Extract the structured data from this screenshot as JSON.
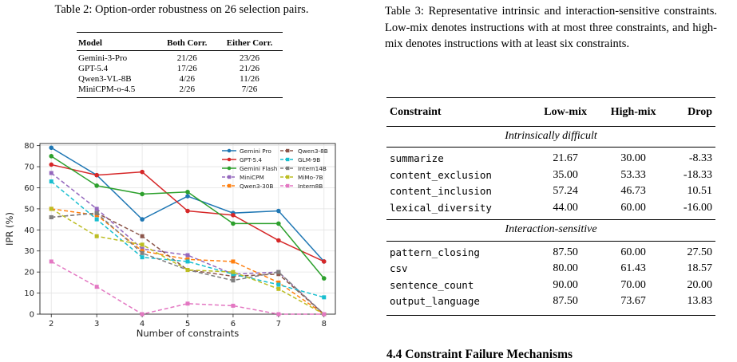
{
  "table2": {
    "caption": "Table 2: Option-order robustness on 26 selection pairs.",
    "headers": [
      "Model",
      "Both Corr.",
      "Either Corr."
    ],
    "rows": [
      [
        "Gemini-3-Pro",
        "21/26",
        "23/26"
      ],
      [
        "GPT-5.4",
        "17/26",
        "21/26"
      ],
      [
        "Qwen3-VL-8B",
        "4/26",
        "11/26"
      ],
      [
        "MiniCPM-o-4.5",
        "2/26",
        "7/26"
      ]
    ]
  },
  "table3": {
    "caption": "Table 3: Representative intrinsic and interaction-sensitive constraints. Low-mix denotes instructions with at most three constraints, and high-mix denotes instructions with at least six constraints.",
    "headers": [
      "Constraint",
      "Low-mix",
      "High-mix",
      "Drop"
    ],
    "sections": [
      {
        "title": "Intrinsically difficult",
        "rows": [
          [
            "summarize",
            "21.67",
            "30.00",
            "-8.33"
          ],
          [
            "content_exclusion",
            "35.00",
            "53.33",
            "-18.33"
          ],
          [
            "content_inclusion",
            "57.24",
            "46.73",
            "10.51"
          ],
          [
            "lexical_diversity",
            "44.00",
            "60.00",
            "-16.00"
          ]
        ]
      },
      {
        "title": "Interaction-sensitive",
        "rows": [
          [
            "pattern_closing",
            "87.50",
            "60.00",
            "27.50"
          ],
          [
            "csv",
            "80.00",
            "61.43",
            "18.57"
          ],
          [
            "sentence_count",
            "90.00",
            "70.00",
            "20.00"
          ],
          [
            "output_language",
            "87.50",
            "73.67",
            "13.83"
          ]
        ]
      }
    ]
  },
  "section_heading": "4.4   Constraint Failure Mechanisms",
  "chart_data": {
    "type": "line",
    "xlabel": "Number of constraints",
    "ylabel": "IPR (%)",
    "x": [
      2,
      3,
      4,
      5,
      6,
      7,
      8
    ],
    "xlim": [
      1.75,
      8.25
    ],
    "ylim": [
      0,
      81
    ],
    "yticks": [
      0,
      10,
      20,
      30,
      40,
      50,
      60,
      70,
      80
    ],
    "grid": true,
    "legend": "top-right",
    "series": [
      {
        "name": "Gemini Pro",
        "color": "#1f77b4",
        "dash": "solid",
        "values": [
          79,
          66,
          45,
          56,
          48,
          49,
          25
        ]
      },
      {
        "name": "GPT-5.4",
        "color": "#d62728",
        "dash": "solid",
        "values": [
          71,
          66,
          67.5,
          49,
          47,
          35,
          25
        ]
      },
      {
        "name": "Gemini Flash",
        "color": "#2ca02c",
        "dash": "solid",
        "values": [
          75,
          61,
          57,
          58,
          43,
          43,
          17
        ]
      },
      {
        "name": "MiniCPM",
        "color": "#9467bd",
        "dash": "dashed",
        "values": [
          67,
          50,
          31,
          28,
          19,
          20,
          0
        ]
      },
      {
        "name": "Qwen3-30B",
        "color": "#ff7f0e",
        "dash": "dashed",
        "values": [
          50,
          47,
          30,
          26,
          25,
          15,
          0
        ]
      },
      {
        "name": "Qwen3-8B",
        "color": "#8c564b",
        "dash": "dashed",
        "values": [
          46,
          48,
          37,
          21,
          18,
          19,
          0
        ]
      },
      {
        "name": "GLM-9B",
        "color": "#17becf",
        "dash": "dashed",
        "values": [
          63,
          45,
          27,
          25,
          19,
          14,
          8
        ]
      },
      {
        "name": "Intern14B",
        "color": "#7f7f7f",
        "dash": "dashed",
        "values": [
          46,
          48,
          29,
          21,
          16,
          20,
          0
        ]
      },
      {
        "name": "MiMo-7B",
        "color": "#bcbd22",
        "dash": "dashed",
        "values": [
          50,
          37,
          33,
          21,
          20,
          12,
          0
        ]
      },
      {
        "name": "Intern8B",
        "color": "#e377c2",
        "dash": "dashed",
        "values": [
          25,
          13,
          0,
          5,
          4,
          0,
          0
        ]
      }
    ]
  }
}
